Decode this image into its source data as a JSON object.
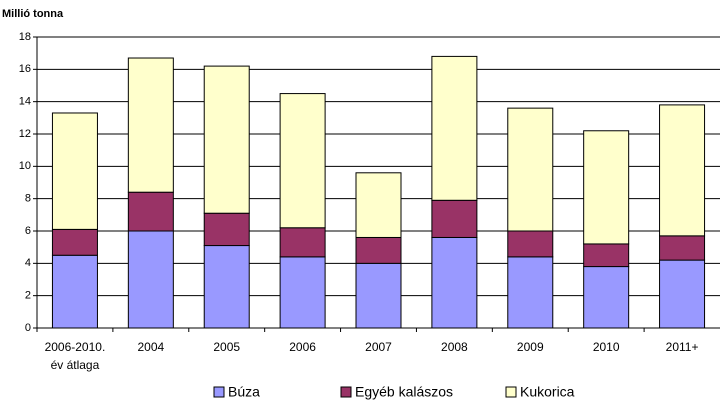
{
  "chart_data": {
    "type": "stacked-bar",
    "y_label": "Millió tonna",
    "categories": [
      "2006-2010. év átlaga",
      "2004",
      "2005",
      "2006",
      "2007",
      "2008",
      "2009",
      "2010",
      "2011+"
    ],
    "series": [
      {
        "name": "Búza",
        "color": "#9999ff",
        "values": [
          4.5,
          6.0,
          5.1,
          4.4,
          4.0,
          5.6,
          4.4,
          3.8,
          4.2
        ]
      },
      {
        "name": "Egyéb kalászos",
        "color": "#993366",
        "values": [
          1.6,
          2.4,
          2.0,
          1.8,
          1.6,
          2.3,
          1.6,
          1.4,
          1.5
        ]
      },
      {
        "name": "Kukorica",
        "color": "#ffffcc",
        "values": [
          7.2,
          8.3,
          9.1,
          8.3,
          4.0,
          8.9,
          7.6,
          7.0,
          8.1
        ]
      }
    ],
    "ylim": [
      0,
      18
    ],
    "yticks": [
      0,
      2,
      4,
      6,
      8,
      10,
      12,
      14,
      16,
      18
    ],
    "grid": true,
    "legend": "bottom"
  }
}
